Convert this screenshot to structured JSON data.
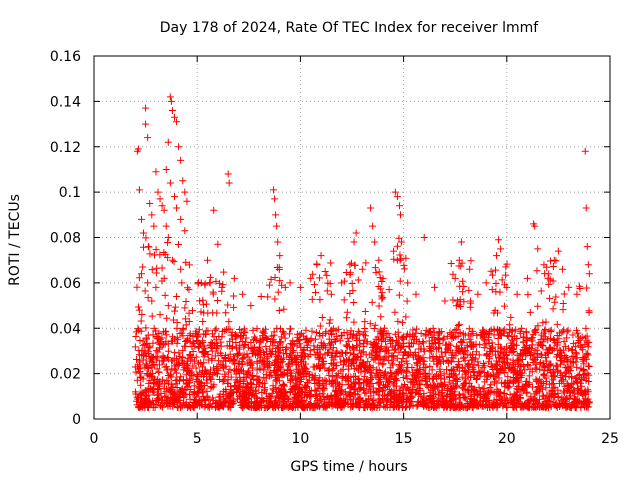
{
  "chart_data": {
    "type": "scatter",
    "title": "Day 178 of 2024, Rate Of TEC Index for receiver lmmf",
    "xlabel": "GPS time / hours",
    "ylabel": "ROTI / TECUs",
    "xlim": [
      0,
      25
    ],
    "ylim": [
      0,
      0.16
    ],
    "x_ticks": [
      0,
      5,
      10,
      15,
      20,
      25
    ],
    "x_tick_labels": [
      "0",
      "5",
      "10",
      "15",
      "20",
      "25"
    ],
    "y_ticks": [
      0,
      0.02,
      0.04,
      0.06,
      0.08,
      0.1,
      0.12,
      0.14,
      0.16
    ],
    "y_tick_labels": [
      "0",
      "0.02",
      "0.04",
      "0.06",
      "0.08",
      "0.1",
      "0.12",
      "0.14",
      "0.16"
    ],
    "grid": true,
    "marker": "+",
    "color": "#ff0000",
    "series": [
      {
        "name": "ROTI",
        "points": [
          [
            2.1,
            0.118
          ],
          [
            2.15,
            0.119
          ],
          [
            2.2,
            0.101
          ],
          [
            2.3,
            0.088
          ],
          [
            2.4,
            0.082
          ],
          [
            2.5,
            0.137
          ],
          [
            2.5,
            0.13
          ],
          [
            2.6,
            0.124
          ],
          [
            2.7,
            0.095
          ],
          [
            2.8,
            0.09
          ],
          [
            2.9,
            0.085
          ],
          [
            3.0,
            0.109
          ],
          [
            3.1,
            0.1
          ],
          [
            3.2,
            0.097
          ],
          [
            3.3,
            0.094
          ],
          [
            3.4,
            0.092
          ],
          [
            3.5,
            0.085
          ],
          [
            3.6,
            0.08
          ],
          [
            3.7,
            0.142
          ],
          [
            3.75,
            0.14
          ],
          [
            3.8,
            0.136
          ],
          [
            3.9,
            0.133
          ],
          [
            4.0,
            0.131
          ],
          [
            4.1,
            0.12
          ],
          [
            4.2,
            0.114
          ],
          [
            4.3,
            0.105
          ],
          [
            4.4,
            0.1
          ],
          [
            4.5,
            0.096
          ],
          [
            3.6,
            0.122
          ],
          [
            3.5,
            0.11
          ],
          [
            3.7,
            0.104
          ],
          [
            3.9,
            0.098
          ],
          [
            4.0,
            0.093
          ],
          [
            4.2,
            0.088
          ],
          [
            4.4,
            0.083
          ],
          [
            2.3,
            0.064
          ],
          [
            2.6,
            0.06
          ],
          [
            3.0,
            0.058
          ],
          [
            3.4,
            0.062
          ],
          [
            3.8,
            0.07
          ],
          [
            4.2,
            0.066
          ],
          [
            4.6,
            0.057
          ],
          [
            2.2,
            0.048
          ],
          [
            2.8,
            0.052
          ],
          [
            3.2,
            0.046
          ],
          [
            3.6,
            0.05
          ],
          [
            4.0,
            0.054
          ],
          [
            4.4,
            0.049
          ],
          [
            5.8,
            0.092
          ],
          [
            6.5,
            0.108
          ],
          [
            6.55,
            0.104
          ],
          [
            6.0,
            0.077
          ],
          [
            5.5,
            0.07
          ],
          [
            5.2,
            0.06
          ],
          [
            6.2,
            0.058
          ],
          [
            6.8,
            0.062
          ],
          [
            7.2,
            0.055
          ],
          [
            7.6,
            0.05
          ],
          [
            8.1,
            0.054
          ],
          [
            8.5,
            0.059
          ],
          [
            8.7,
            0.101
          ],
          [
            8.75,
            0.097
          ],
          [
            8.8,
            0.09
          ],
          [
            8.85,
            0.085
          ],
          [
            8.9,
            0.078
          ],
          [
            9.0,
            0.072
          ],
          [
            9.5,
            0.06
          ],
          [
            10.0,
            0.058
          ],
          [
            10.5,
            0.062
          ],
          [
            10.8,
            0.068
          ],
          [
            11.0,
            0.072
          ],
          [
            11.2,
            0.065
          ],
          [
            11.5,
            0.055
          ],
          [
            12.0,
            0.06
          ],
          [
            12.4,
            0.068
          ],
          [
            12.6,
            0.078
          ],
          [
            12.7,
            0.082
          ],
          [
            13.0,
            0.066
          ],
          [
            13.4,
            0.093
          ],
          [
            13.5,
            0.085
          ],
          [
            13.6,
            0.078
          ],
          [
            13.8,
            0.07
          ],
          [
            14.0,
            0.062
          ],
          [
            14.3,
            0.057
          ],
          [
            14.6,
            0.1
          ],
          [
            14.7,
            0.098
          ],
          [
            14.8,
            0.094
          ],
          [
            14.85,
            0.09
          ],
          [
            14.9,
            0.078
          ],
          [
            14.7,
            0.07
          ],
          [
            15.2,
            0.06
          ],
          [
            15.6,
            0.055
          ],
          [
            16.0,
            0.08
          ],
          [
            16.5,
            0.058
          ],
          [
            17.0,
            0.052
          ],
          [
            17.5,
            0.062
          ],
          [
            17.7,
            0.07
          ],
          [
            17.8,
            0.078
          ],
          [
            18.2,
            0.066
          ],
          [
            18.6,
            0.055
          ],
          [
            19.0,
            0.06
          ],
          [
            19.5,
            0.072
          ],
          [
            19.6,
            0.079
          ],
          [
            19.7,
            0.075
          ],
          [
            20.0,
            0.058
          ],
          [
            20.5,
            0.055
          ],
          [
            21.0,
            0.062
          ],
          [
            21.3,
            0.086
          ],
          [
            21.35,
            0.085
          ],
          [
            21.5,
            0.075
          ],
          [
            21.8,
            0.068
          ],
          [
            22.0,
            0.062
          ],
          [
            22.3,
            0.07
          ],
          [
            22.5,
            0.074
          ],
          [
            22.7,
            0.066
          ],
          [
            23.0,
            0.058
          ],
          [
            23.4,
            0.055
          ],
          [
            23.8,
            0.118
          ],
          [
            23.85,
            0.093
          ],
          [
            23.9,
            0.076
          ],
          [
            23.95,
            0.068
          ],
          [
            24.0,
            0.064
          ]
        ]
      }
    ]
  }
}
